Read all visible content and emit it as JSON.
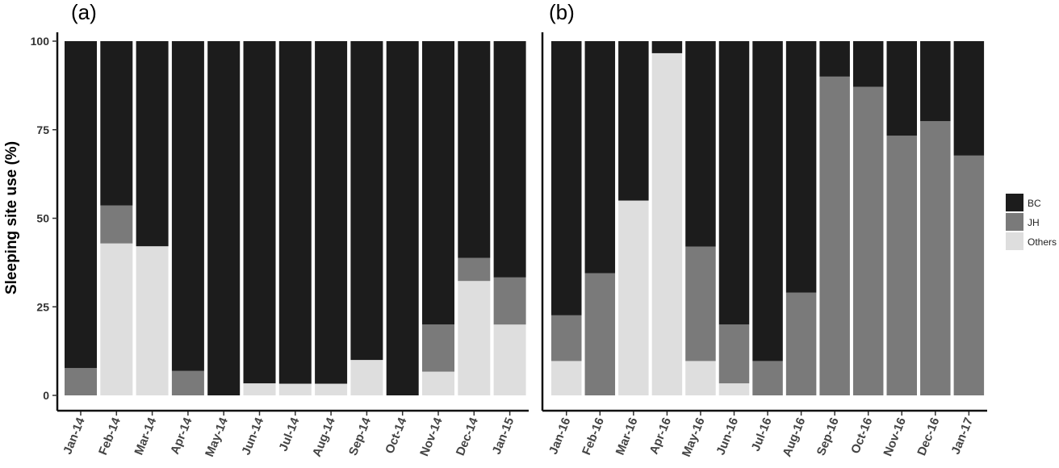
{
  "chart_data": {
    "type": "bar",
    "stacked": true,
    "ylabel": "Sleeping site use (%)",
    "ylim": [
      0,
      100
    ],
    "yticks": [
      "0",
      "25",
      "50",
      "75",
      "100"
    ],
    "legend": {
      "placement": "right",
      "entries": [
        {
          "name": "BC",
          "color": "#1c1c1c"
        },
        {
          "name": "JH",
          "color": "#7a7a7a"
        },
        {
          "name": "Others",
          "color": "#dedede"
        }
      ]
    },
    "panels": [
      {
        "label": "(a)",
        "categories": [
          "Jan-14",
          "Feb-14",
          "Mar-14",
          "Apr-14",
          "May-14",
          "Jun-14",
          "Jul-14",
          "Aug-14",
          "Sep-14",
          "Oct-14",
          "Nov-14",
          "Dec-14",
          "Jan-15"
        ],
        "series": [
          {
            "name": "Others",
            "values": [
              0,
              42.9,
              42.1,
              0,
              0,
              3.4,
              3.3,
              3.3,
              10,
              0,
              6.7,
              32.3,
              20
            ]
          },
          {
            "name": "JH",
            "values": [
              7.7,
              10.7,
              0,
              6.9,
              0,
              0,
              0,
              0,
              0,
              0,
              13.3,
              6.5,
              13.3
            ]
          },
          {
            "name": "BC",
            "values": [
              92.3,
              46.4,
              57.9,
              93.1,
              100,
              96.6,
              96.7,
              96.7,
              90,
              100,
              80,
              61.2,
              66.7
            ]
          }
        ]
      },
      {
        "label": "(b)",
        "categories": [
          "Jan-16",
          "Feb-16",
          "Mar-16",
          "Apr-16",
          "May-16",
          "Jun-16",
          "Jul-16",
          "Aug-16",
          "Sep-16",
          "Oct-16",
          "Nov-16",
          "Dec-16",
          "Jan-17"
        ],
        "series": [
          {
            "name": "Others",
            "values": [
              9.7,
              0,
              55,
              96.6,
              9.7,
              3.4,
              0,
              0,
              0,
              0,
              0,
              0,
              0
            ]
          },
          {
            "name": "JH",
            "values": [
              12.9,
              34.5,
              0,
              0,
              32.3,
              16.6,
              9.7,
              29,
              90,
              87.1,
              73.3,
              77.4,
              67.7
            ]
          },
          {
            "name": "BC",
            "values": [
              77.4,
              65.5,
              45,
              3.4,
              58,
              80,
              90.3,
              71,
              10,
              12.9,
              26.7,
              22.6,
              32.3
            ]
          }
        ]
      }
    ]
  }
}
